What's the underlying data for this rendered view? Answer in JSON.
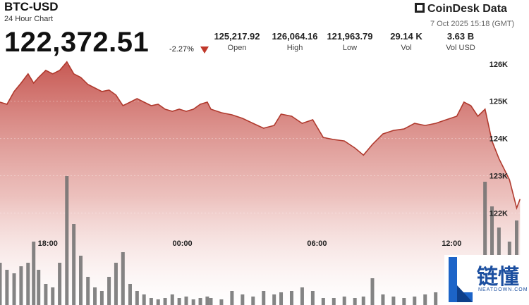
{
  "header": {
    "price": "122,372.51",
    "change": "-2.27%",
    "brand": "CoinDesk Data",
    "timestamp": "7 Oct 2025 15:18 (GMT)",
    "watermark": "链懂",
    "watermark_url": "NEATDOWN.COM",
    "stats": [
      {
        "value": "125,217.92",
        "label": "Open"
      },
      {
        "value": "126,064.16",
        "label": "High"
      },
      {
        "value": "121,963.79",
        "label": "Low"
      },
      {
        "value": "29.14 K",
        "label": "Vol"
      },
      {
        "value": "3.63 B",
        "label": "Vol USD"
      }
    ]
  },
  "chart_data": {
    "type": "area",
    "title": "BTC-USD",
    "subtitle": "24 Hour Chart",
    "x": [
      15.87,
      16.18,
      16.5,
      16.81,
      17.12,
      17.37,
      17.59,
      17.91,
      18.22,
      18.53,
      18.85,
      19.16,
      19.47,
      19.79,
      20.1,
      20.41,
      20.73,
      21.04,
      21.35,
      21.67,
      21.98,
      22.29,
      22.61,
      22.92,
      23.23,
      23.55,
      23.86,
      24.17,
      24.49,
      24.8,
      25.11,
      25.27,
      25.74,
      26.21,
      26.68,
      27.15,
      27.62,
      28.09,
      28.4,
      28.87,
      29.34,
      29.81,
      30.28,
      30.75,
      31.22,
      31.69,
      32.07,
      32.47,
      32.94,
      33.41,
      33.88,
      34.35,
      34.82,
      35.29,
      35.76,
      36.23,
      36.55,
      36.86,
      37.17,
      37.49,
      37.8,
      38.11,
      38.58,
      38.9,
      39.05
    ],
    "series": [
      {
        "name": "Price",
        "color": "#b03a2e",
        "values": [
          124976,
          124919,
          125261,
          125488,
          125735,
          125488,
          125640,
          125829,
          125735,
          125829,
          126057,
          125735,
          125640,
          125450,
          125355,
          125261,
          125298,
          125166,
          124881,
          124976,
          125071,
          124976,
          124881,
          124919,
          124787,
          124730,
          124787,
          124730,
          124787,
          124919,
          124976,
          124787,
          124692,
          124635,
          124540,
          124407,
          124275,
          124350,
          124654,
          124597,
          124407,
          124502,
          124028,
          123971,
          123933,
          123744,
          123554,
          123839,
          124123,
          124218,
          124256,
          124407,
          124350,
          124407,
          124502,
          124597,
          124976,
          124881,
          124597,
          124787,
          123933,
          123459,
          122891,
          122132,
          122372
        ]
      },
      {
        "name": "Volume",
        "type": "bar",
        "axis": "y2",
        "color": "#6e6e6e",
        "values": [
          60,
          50,
          45,
          55,
          60,
          90,
          50,
          30,
          25,
          60,
          183,
          115,
          70,
          40,
          25,
          20,
          40,
          60,
          75,
          30,
          20,
          15,
          10,
          8,
          10,
          15,
          10,
          12,
          8,
          10,
          12,
          10,
          8,
          20,
          15,
          12,
          20,
          15,
          18,
          20,
          25,
          20,
          10,
          10,
          12,
          10,
          12,
          38,
          15,
          12,
          10,
          12,
          15,
          18,
          12,
          15,
          25,
          35,
          40,
          175,
          140,
          110,
          90,
          120,
          60
        ]
      }
    ],
    "xlim": [
      15.87,
      39.45
    ],
    "xticks": [
      {
        "value": 18,
        "label": "18:00"
      },
      {
        "value": 24,
        "label": "00:00"
      },
      {
        "value": 30,
        "label": "06:00"
      },
      {
        "value": 36,
        "label": "12:00"
      }
    ],
    "ylim": [
      119530,
      126110
    ],
    "yticks": [
      {
        "value": 122000,
        "label": "122K"
      },
      {
        "value": 123000,
        "label": "123K"
      },
      {
        "value": 124000,
        "label": "124K"
      },
      {
        "value": 125000,
        "label": "125K"
      },
      {
        "value": 126000,
        "label": "126K"
      }
    ],
    "y2lim": [
      0,
      348
    ],
    "grid": true
  }
}
